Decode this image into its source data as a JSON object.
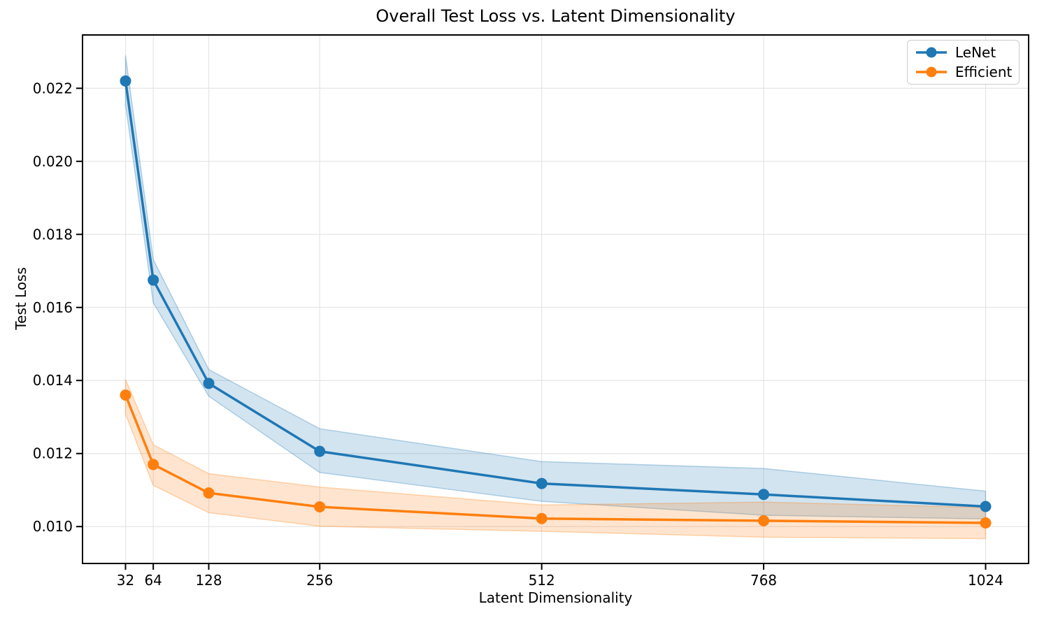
{
  "chart_data": {
    "type": "line",
    "title": "Overall Test Loss vs. Latent Dimensionality",
    "xlabel": "Latent Dimensionality",
    "ylabel": "Test Loss",
    "x": [
      32,
      64,
      128,
      256,
      512,
      768,
      1024
    ],
    "xticks": [
      32,
      64,
      128,
      256,
      512,
      768,
      1024
    ],
    "yticks": [
      0.01,
      0.012,
      0.014,
      0.016,
      0.018,
      0.02,
      0.022
    ],
    "ytick_labels": [
      "0.010",
      "0.012",
      "0.014",
      "0.016",
      "0.018",
      "0.020",
      "0.022"
    ],
    "xlim": [
      -17.6,
      1073.6
    ],
    "ylim": [
      0.00899,
      0.02346
    ],
    "grid": true,
    "legend_position": "upper right",
    "series": [
      {
        "name": "LeNet",
        "color": "#1f77b4",
        "values": [
          0.0222,
          0.01675,
          0.01392,
          0.01206,
          0.01118,
          0.01088,
          0.01055
        ],
        "band_upper": [
          0.0229,
          0.01731,
          0.0143,
          0.01268,
          0.01178,
          0.01159,
          0.01097
        ],
        "band_lower": [
          0.02155,
          0.01613,
          0.01357,
          0.01148,
          0.01069,
          0.01031,
          0.01021
        ],
        "band_alpha": 0.2
      },
      {
        "name": "Efficient",
        "color": "#ff7f0e",
        "values": [
          0.0136,
          0.0117,
          0.01092,
          0.01054,
          0.01022,
          0.01016,
          0.0101
        ],
        "band_upper": [
          0.01403,
          0.01224,
          0.01145,
          0.01108,
          0.01059,
          0.01067,
          0.01052
        ],
        "band_lower": [
          0.01308,
          0.01113,
          0.01038,
          0.01001,
          0.00987,
          0.00971,
          0.00967
        ],
        "band_alpha": 0.2
      }
    ]
  },
  "style": {
    "background": "#ffffff",
    "grid_color": "#e5e5e5",
    "spine_color": "#000000",
    "tick_color": "#000000",
    "text_color": "#000000",
    "legend_border": "#cccccc"
  }
}
